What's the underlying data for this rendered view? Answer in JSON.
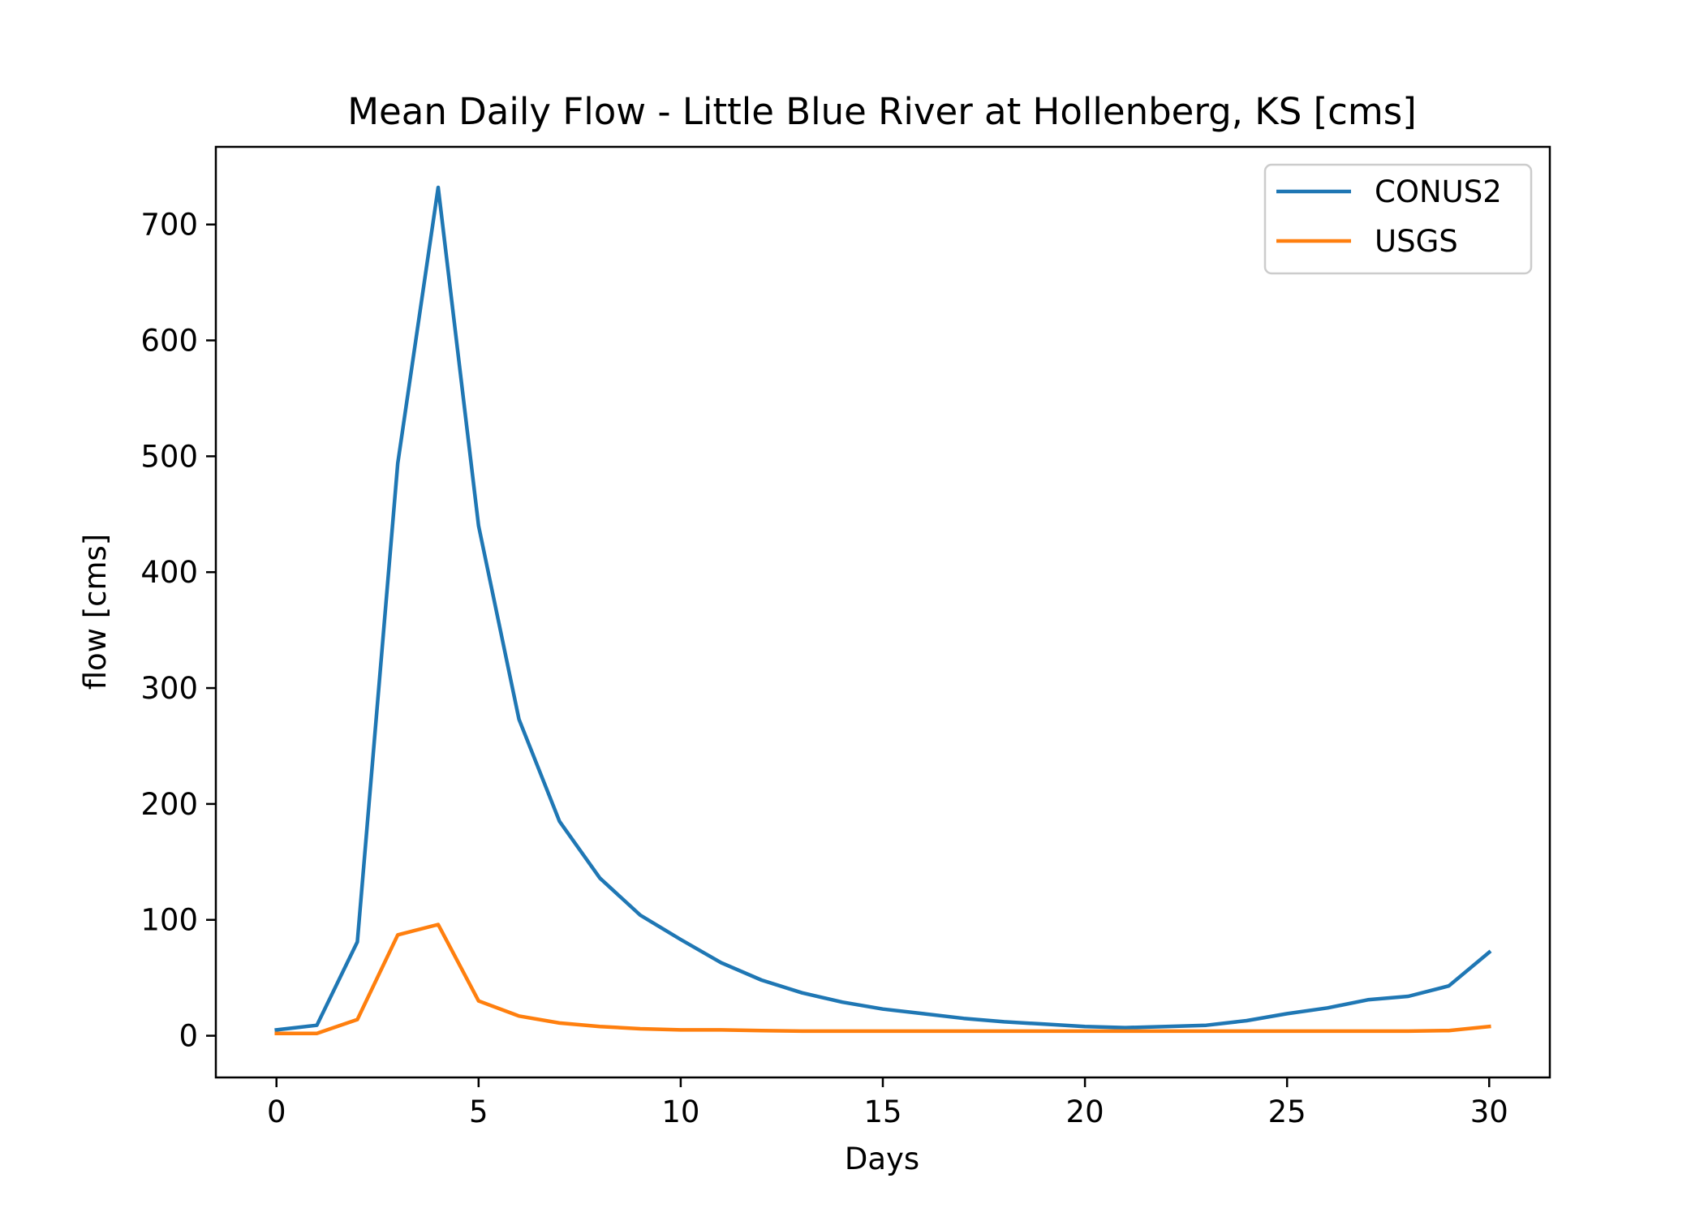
{
  "chart_data": {
    "type": "line",
    "title": "Mean Daily Flow - Little Blue River at Hollenberg, KS [cms]",
    "xlabel": "Days",
    "ylabel": "flow [cms]",
    "xlim": [
      -1.5,
      31.5
    ],
    "ylim": [
      -36,
      767
    ],
    "xticks": [
      0,
      5,
      10,
      15,
      20,
      25,
      30
    ],
    "yticks": [
      0,
      100,
      200,
      300,
      400,
      500,
      600,
      700
    ],
    "grid": false,
    "legend_position": "top-right",
    "x": [
      0,
      1,
      2,
      3,
      4,
      5,
      6,
      7,
      8,
      9,
      10,
      11,
      12,
      13,
      14,
      15,
      16,
      17,
      18,
      19,
      20,
      21,
      22,
      23,
      24,
      25,
      26,
      27,
      28,
      29,
      30
    ],
    "series": [
      {
        "name": "CONUS2",
        "color": "#1f77b4",
        "values": [
          5,
          9,
          81,
          494,
          732,
          440,
          273,
          185,
          136,
          104,
          83,
          63,
          48,
          37,
          29,
          23,
          19,
          15,
          12,
          10,
          8,
          7,
          8,
          9,
          13,
          19,
          24,
          31,
          34,
          43,
          72
        ]
      },
      {
        "name": "USGS",
        "color": "#ff7f0e",
        "values": [
          2,
          2,
          14,
          87,
          96,
          30,
          17,
          11,
          8,
          6,
          5,
          5,
          4.5,
          4,
          4,
          4,
          4,
          4,
          4,
          4,
          4,
          4,
          4,
          4,
          4,
          4,
          4,
          4,
          4,
          4.5,
          8
        ]
      }
    ]
  }
}
